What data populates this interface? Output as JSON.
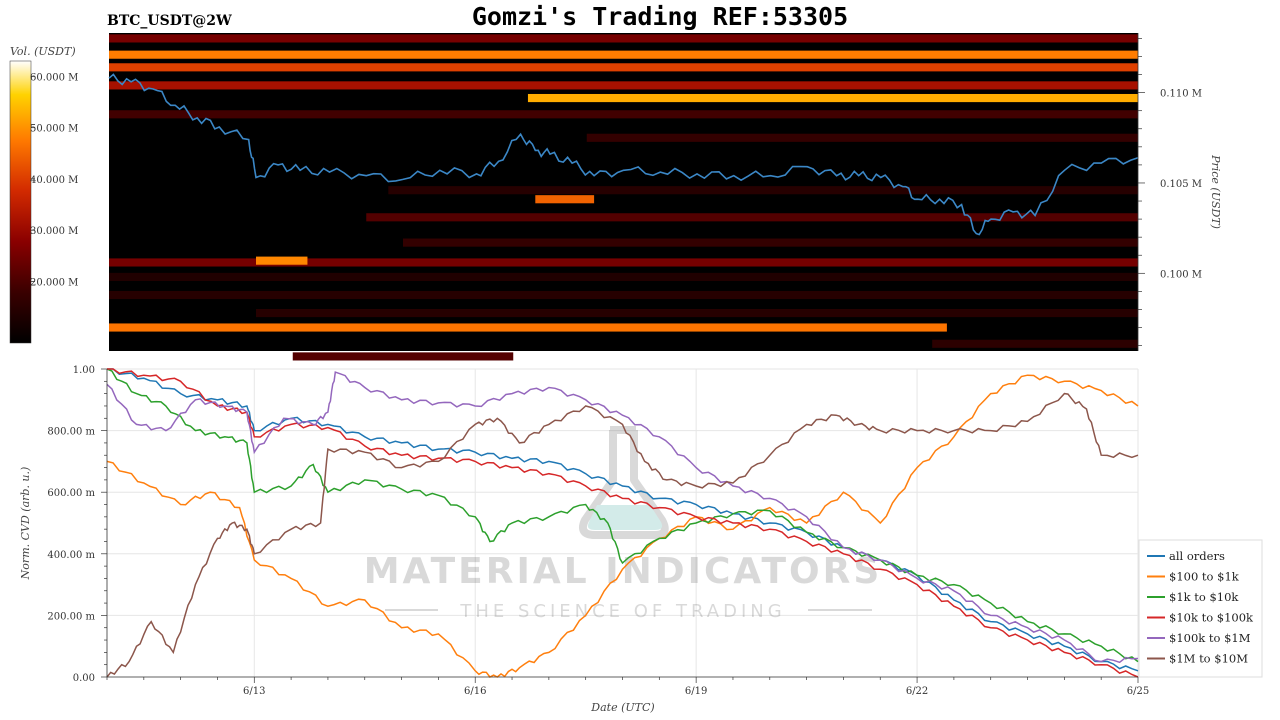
{
  "header": {
    "title": "Gomzi's Trading REF:53305",
    "pair": "BTC_USDT@2W"
  },
  "watermark": {
    "line1": "MATERIAL INDICATORS",
    "line2": "THE SCIENCE OF TRADING"
  },
  "colorbar": {
    "label": "Vol. (USDT)",
    "ticks": [
      "60.000 M",
      "50.000 M",
      "40.000 M",
      "30.000 M",
      "20.000 M"
    ],
    "tick_values": [
      60,
      50,
      40,
      30,
      20
    ],
    "range": [
      8,
      63
    ],
    "colormap": [
      "#000000",
      "#3a0000",
      "#8a0000",
      "#d22a00",
      "#ff7a00",
      "#ffd200",
      "#ffffff"
    ]
  },
  "chart_data": [
    {
      "type": "heatmap",
      "title": "BTC_USDT@2W",
      "ylabel": "Price (USDT)",
      "y_ticks": [
        "0.110 M",
        "0.105 M",
        "0.100 M"
      ],
      "y_tick_values": [
        0.11,
        0.105,
        0.1
      ],
      "ylim": [
        0.0957,
        0.1133
      ],
      "x_range_days": [
        11.0,
        25.0
      ],
      "price_line_color": "#3b87c6",
      "price_series": {
        "x": [
          11.0,
          11.3,
          11.6,
          11.9,
          12.2,
          12.5,
          12.9,
          13.0,
          13.3,
          13.6,
          14.0,
          14.5,
          15.0,
          15.5,
          16.0,
          16.3,
          16.6,
          16.8,
          17.0,
          17.3,
          17.6,
          18.0,
          18.5,
          19.0,
          19.5,
          20.0,
          20.5,
          20.9,
          21.2,
          21.5,
          21.8,
          22.0,
          22.3,
          22.6,
          22.8,
          23.0,
          23.3,
          23.6,
          24.0,
          24.5,
          25.0
        ],
        "y": [
          0.1108,
          0.1106,
          0.1102,
          0.1093,
          0.1086,
          0.1081,
          0.1074,
          0.1053,
          0.106,
          0.1057,
          0.1056,
          0.1054,
          0.1052,
          0.1057,
          0.1055,
          0.1062,
          0.1077,
          0.1068,
          0.1066,
          0.1061,
          0.1054,
          0.1057,
          0.1056,
          0.1055,
          0.1054,
          0.1054,
          0.1059,
          0.1054,
          0.1054,
          0.1053,
          0.1048,
          0.1041,
          0.1041,
          0.1038,
          0.1022,
          0.103,
          0.1034,
          0.1032,
          0.1057,
          0.1061,
          0.1064
        ]
      },
      "levels": [
        {
          "price": 0.113,
          "from": 11.0,
          "to": 25.0,
          "vol": 24
        },
        {
          "price": 0.1121,
          "from": 11.0,
          "to": 25.0,
          "vol": 45
        },
        {
          "price": 0.1114,
          "from": 11.0,
          "to": 25.0,
          "vol": 38
        },
        {
          "price": 0.1104,
          "from": 11.0,
          "to": 25.0,
          "vol": 30
        },
        {
          "price": 0.1097,
          "from": 16.7,
          "to": 25.0,
          "vol": 50
        },
        {
          "price": 0.1088,
          "from": 11.0,
          "to": 25.0,
          "vol": 18
        },
        {
          "price": 0.1075,
          "from": 17.5,
          "to": 25.0,
          "vol": 16
        },
        {
          "price": 0.1046,
          "from": 14.8,
          "to": 25.0,
          "vol": 14
        },
        {
          "price": 0.1041,
          "from": 16.8,
          "to": 17.6,
          "vol": 42
        },
        {
          "price": 0.1031,
          "from": 14.5,
          "to": 25.0,
          "vol": 20
        },
        {
          "price": 0.1017,
          "from": 15.0,
          "to": 25.0,
          "vol": 16
        },
        {
          "price": 0.1006,
          "from": 11.0,
          "to": 25.0,
          "vol": 24
        },
        {
          "price": 0.1007,
          "from": 13.0,
          "to": 13.7,
          "vol": 46
        },
        {
          "price": 0.0998,
          "from": 11.0,
          "to": 25.0,
          "vol": 13
        },
        {
          "price": 0.0988,
          "from": 11.0,
          "to": 25.0,
          "vol": 14
        },
        {
          "price": 0.0978,
          "from": 13.0,
          "to": 25.0,
          "vol": 14
        },
        {
          "price": 0.097,
          "from": 11.0,
          "to": 22.4,
          "vol": 44
        },
        {
          "price": 0.0961,
          "from": 22.2,
          "to": 25.0,
          "vol": 15
        },
        {
          "price": 0.0954,
          "from": 13.5,
          "to": 16.5,
          "vol": 20
        }
      ]
    },
    {
      "type": "line",
      "xlabel": "Date (UTC)",
      "ylabel": "Norm. CVD (arb. u.)",
      "x_ticks": [
        "6/13",
        "6/16",
        "6/19",
        "6/22",
        "6/25"
      ],
      "x_tick_values": [
        13,
        16,
        19,
        22,
        25
      ],
      "xlim": [
        11.0,
        25.0
      ],
      "y_ticks": [
        "1.00",
        "800.00 m",
        "600.00 m",
        "400.00 m",
        "200.00 m",
        "0.00"
      ],
      "y_tick_values": [
        1.0,
        0.8,
        0.6,
        0.4,
        0.2,
        0.0
      ],
      "ylim": [
        0.0,
        1.0
      ],
      "grid": true,
      "legend_position": "bottom-right",
      "series": [
        {
          "name": "all orders",
          "color": "#1f77b4",
          "x": [
            11.0,
            11.5,
            12.0,
            12.5,
            12.9,
            13.0,
            13.5,
            14.0,
            14.5,
            15.0,
            15.5,
            16.0,
            16.5,
            17.0,
            17.5,
            18.0,
            18.5,
            19.0,
            19.5,
            20.0,
            20.5,
            21.0,
            21.5,
            22.0,
            22.5,
            23.0,
            23.5,
            24.0,
            24.5,
            25.0
          ],
          "y": [
            1.0,
            0.97,
            0.92,
            0.9,
            0.88,
            0.8,
            0.84,
            0.82,
            0.78,
            0.76,
            0.74,
            0.73,
            0.71,
            0.7,
            0.66,
            0.62,
            0.58,
            0.56,
            0.53,
            0.5,
            0.47,
            0.42,
            0.38,
            0.33,
            0.25,
            0.18,
            0.14,
            0.1,
            0.05,
            0.02
          ]
        },
        {
          "name": "$100 to $1k",
          "color": "#ff7f0e",
          "x": [
            11.0,
            11.5,
            12.0,
            12.4,
            12.8,
            13.0,
            13.5,
            14.0,
            14.5,
            15.0,
            15.5,
            16.0,
            16.3,
            16.6,
            17.0,
            17.5,
            18.0,
            18.5,
            19.0,
            19.5,
            20.0,
            20.5,
            21.0,
            21.5,
            22.0,
            22.5,
            23.0,
            23.5,
            24.0,
            24.5,
            25.0
          ],
          "y": [
            0.7,
            0.63,
            0.56,
            0.6,
            0.55,
            0.38,
            0.32,
            0.23,
            0.25,
            0.16,
            0.14,
            0.02,
            0.0,
            0.03,
            0.08,
            0.2,
            0.35,
            0.45,
            0.52,
            0.48,
            0.55,
            0.5,
            0.6,
            0.5,
            0.68,
            0.78,
            0.92,
            0.98,
            0.96,
            0.93,
            0.88
          ]
        },
        {
          "name": "$1k to $10k",
          "color": "#2ca02c",
          "x": [
            11.0,
            11.4,
            11.8,
            12.2,
            12.6,
            12.9,
            13.0,
            13.5,
            13.8,
            14.0,
            14.5,
            15.0,
            15.5,
            16.0,
            16.2,
            16.5,
            17.0,
            17.5,
            17.8,
            18.0,
            18.5,
            19.0,
            19.5,
            20.0,
            20.5,
            21.0,
            21.5,
            22.0,
            22.5,
            23.0,
            23.5,
            24.0,
            24.5,
            25.0
          ],
          "y": [
            1.0,
            0.92,
            0.88,
            0.8,
            0.78,
            0.76,
            0.6,
            0.62,
            0.69,
            0.6,
            0.64,
            0.61,
            0.59,
            0.52,
            0.44,
            0.5,
            0.52,
            0.56,
            0.5,
            0.37,
            0.45,
            0.5,
            0.53,
            0.54,
            0.47,
            0.42,
            0.38,
            0.33,
            0.3,
            0.24,
            0.18,
            0.14,
            0.1,
            0.05
          ]
        },
        {
          "name": "$10k to $100k",
          "color": "#d62728",
          "x": [
            11.0,
            11.5,
            12.0,
            12.5,
            12.9,
            13.0,
            13.5,
            14.0,
            14.5,
            15.0,
            15.5,
            16.0,
            16.5,
            17.0,
            17.5,
            18.0,
            18.5,
            19.0,
            19.5,
            20.0,
            20.5,
            21.0,
            21.5,
            22.0,
            22.5,
            23.0,
            23.5,
            24.0,
            24.5,
            25.0
          ],
          "y": [
            1.0,
            0.98,
            0.96,
            0.88,
            0.86,
            0.78,
            0.82,
            0.81,
            0.75,
            0.72,
            0.71,
            0.7,
            0.68,
            0.66,
            0.62,
            0.58,
            0.55,
            0.52,
            0.5,
            0.48,
            0.44,
            0.4,
            0.35,
            0.3,
            0.23,
            0.16,
            0.12,
            0.08,
            0.04,
            0.0
          ]
        },
        {
          "name": "$100k to $1M",
          "color": "#9467bd",
          "x": [
            11.0,
            11.4,
            11.8,
            12.2,
            12.6,
            12.9,
            13.0,
            13.4,
            13.8,
            14.0,
            14.1,
            14.5,
            15.0,
            15.5,
            16.0,
            16.5,
            17.0,
            17.5,
            18.0,
            18.5,
            19.0,
            19.5,
            20.0,
            20.5,
            21.0,
            21.5,
            22.0,
            22.5,
            23.0,
            23.5,
            24.0,
            24.5,
            25.0
          ],
          "y": [
            0.95,
            0.82,
            0.8,
            0.9,
            0.88,
            0.86,
            0.73,
            0.84,
            0.82,
            0.86,
            0.99,
            0.94,
            0.9,
            0.89,
            0.88,
            0.92,
            0.94,
            0.9,
            0.85,
            0.78,
            0.68,
            0.62,
            0.58,
            0.52,
            0.42,
            0.38,
            0.32,
            0.28,
            0.2,
            0.16,
            0.12,
            0.05,
            0.06
          ]
        },
        {
          "name": "$1M to $10M",
          "color": "#8c564b",
          "x": [
            11.0,
            11.3,
            11.6,
            11.9,
            12.2,
            12.5,
            12.7,
            12.9,
            13.0,
            13.5,
            13.9,
            14.0,
            14.5,
            15.0,
            15.5,
            16.0,
            16.3,
            16.6,
            17.0,
            17.5,
            18.0,
            18.3,
            18.6,
            19.0,
            19.5,
            20.0,
            20.5,
            20.9,
            21.2,
            21.5,
            22.0,
            22.5,
            23.0,
            23.5,
            24.0,
            24.3,
            24.5,
            25.0
          ],
          "y": [
            0.0,
            0.05,
            0.18,
            0.08,
            0.3,
            0.45,
            0.5,
            0.48,
            0.4,
            0.48,
            0.5,
            0.74,
            0.73,
            0.68,
            0.7,
            0.82,
            0.84,
            0.76,
            0.82,
            0.88,
            0.82,
            0.7,
            0.64,
            0.62,
            0.63,
            0.72,
            0.82,
            0.85,
            0.82,
            0.8,
            0.8,
            0.8,
            0.8,
            0.83,
            0.92,
            0.87,
            0.72,
            0.72
          ]
        }
      ]
    }
  ]
}
